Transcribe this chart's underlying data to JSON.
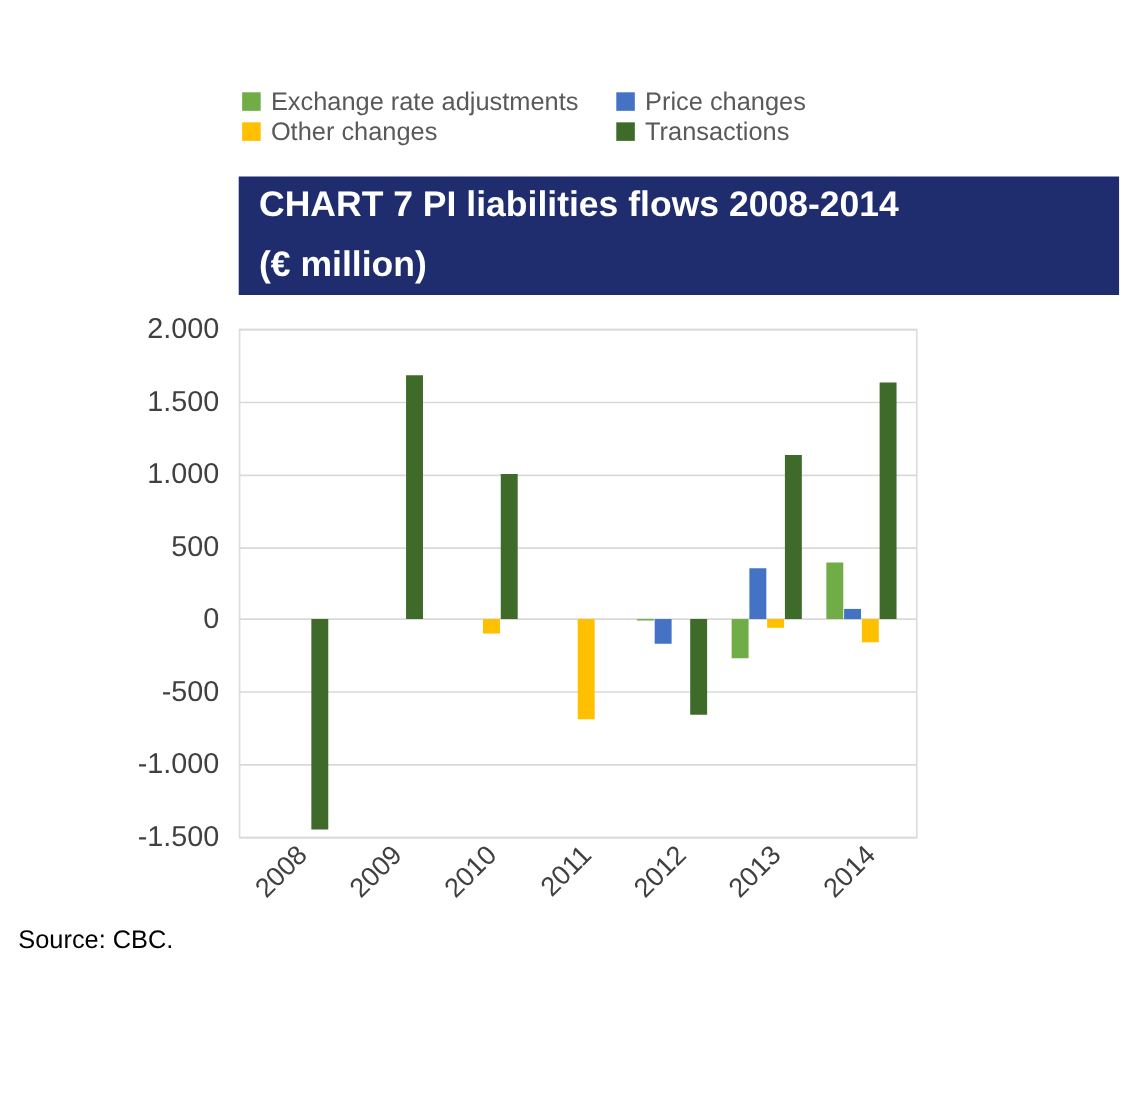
{
  "chart_data": {
    "type": "bar",
    "title": [
      "CHART 7   PI liabilities flows 2008-2014",
      "(€ million)"
    ],
    "categories": [
      "2008",
      "2009",
      "2010",
      "2011",
      "2012",
      "2013",
      "2014"
    ],
    "series": [
      {
        "name": "Exchange rate adjustments",
        "color": "#70ad47",
        "values": [
          0,
          0,
          0,
          0,
          -10,
          -270,
          390
        ]
      },
      {
        "name": "Price changes",
        "color": "#4472c4",
        "values": [
          0,
          0,
          0,
          0,
          -170,
          350,
          70
        ]
      },
      {
        "name": "Other changes",
        "color": "#ffc000",
        "values": [
          0,
          0,
          -100,
          -690,
          0,
          -60,
          -160
        ]
      },
      {
        "name": "Transactions",
        "color": "#3f6b2a",
        "values": [
          -1450,
          1680,
          1000,
          0,
          -660,
          1130,
          1630
        ]
      }
    ],
    "ylim": [
      -1500,
      2000
    ],
    "yticks": [
      {
        "value": -1500,
        "label": "-1.500"
      },
      {
        "value": -1000,
        "label": "-1.000"
      },
      {
        "value": -500,
        "label": "-500"
      },
      0,
      500,
      {
        "value": 1000,
        "label": "1.000"
      },
      {
        "value": 1500,
        "label": "1.500"
      },
      {
        "value": 2000,
        "label": "2.000"
      }
    ],
    "grid": "y",
    "legend": "top left",
    "annotations": [
      "Source: CBC."
    ]
  }
}
